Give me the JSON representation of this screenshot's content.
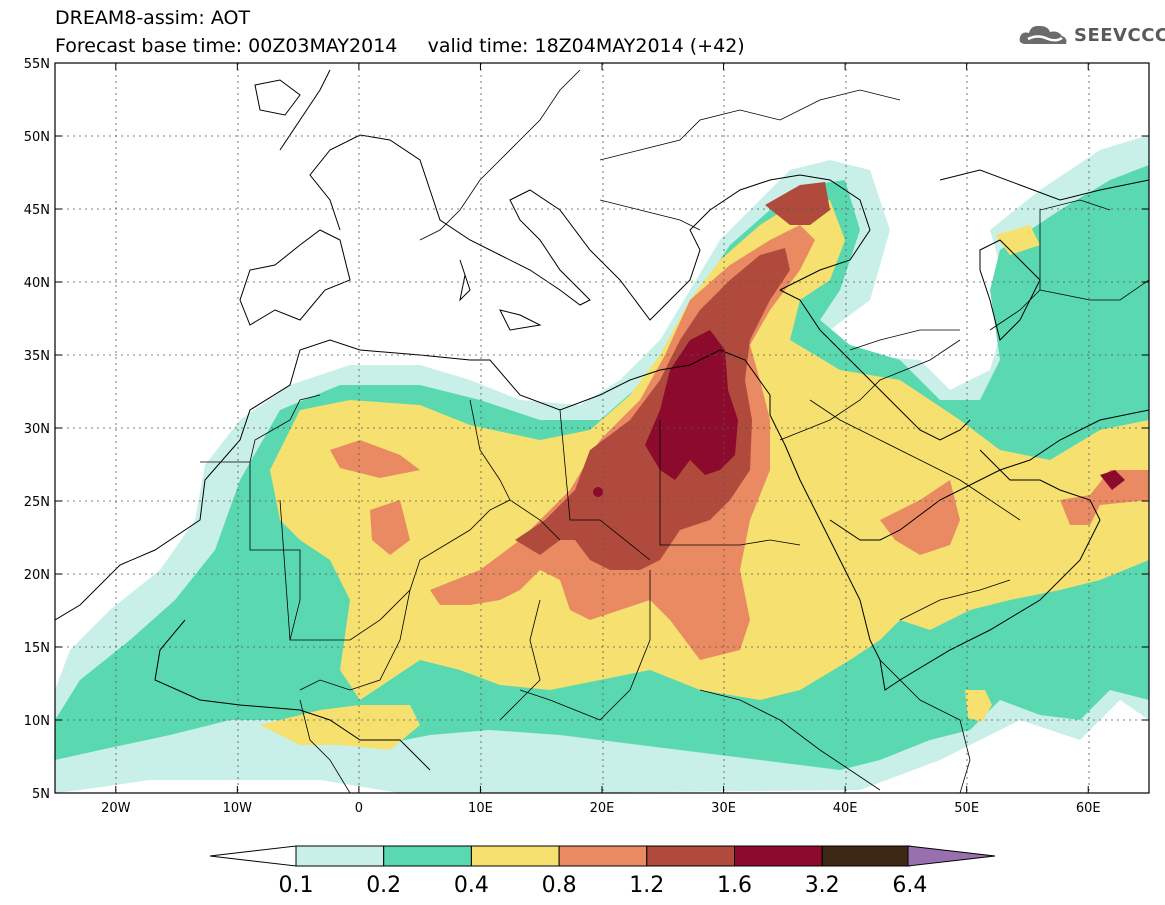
{
  "header": {
    "line1": "DREAM8-assim: AOT",
    "line2": "Forecast base time: 00Z03MAY2014     valid time: 18Z04MAY2014 (+42)"
  },
  "logo": {
    "text": "SEEVCCC",
    "icon": "cloud-logo-icon"
  },
  "map": {
    "lon_range": [
      -25,
      65
    ],
    "lat_range": [
      5,
      55
    ],
    "lat_ticks": [
      {
        "value": 55,
        "label": "55N"
      },
      {
        "value": 50,
        "label": "50N"
      },
      {
        "value": 45,
        "label": "45N"
      },
      {
        "value": 40,
        "label": "40N"
      },
      {
        "value": 35,
        "label": "35N"
      },
      {
        "value": 30,
        "label": "30N"
      },
      {
        "value": 25,
        "label": "25N"
      },
      {
        "value": 20,
        "label": "20N"
      },
      {
        "value": 15,
        "label": "15N"
      },
      {
        "value": 10,
        "label": "10N"
      },
      {
        "value": 5,
        "label": "5N"
      }
    ],
    "lon_ticks": [
      {
        "value": -20,
        "label": "20W"
      },
      {
        "value": -10,
        "label": "10W"
      },
      {
        "value": 0,
        "label": "0"
      },
      {
        "value": 10,
        "label": "10E"
      },
      {
        "value": 20,
        "label": "20E"
      },
      {
        "value": 30,
        "label": "30E"
      },
      {
        "value": 40,
        "label": "40E"
      },
      {
        "value": 50,
        "label": "50E"
      },
      {
        "value": 60,
        "label": "60E"
      }
    ],
    "grid": true
  },
  "colorbar": {
    "levels": [
      "0.1",
      "0.2",
      "0.4",
      "0.8",
      "1.2",
      "1.6",
      "3.2",
      "6.4"
    ],
    "colors": [
      "#c8f0e8",
      "#5ad8b0",
      "#f5e070",
      "#e98a62",
      "#b04a3c",
      "#8c0a2c",
      "#3c2814",
      "#9a6fae"
    ],
    "under_color": "#ffffff"
  },
  "fields": {
    "c01": "#c8f0e8",
    "c02": "#5ad8b0",
    "c04": "#f5e070",
    "c08": "#e98a62",
    "c12": "#b04a3c",
    "c16": "#8c0a2c"
  }
}
